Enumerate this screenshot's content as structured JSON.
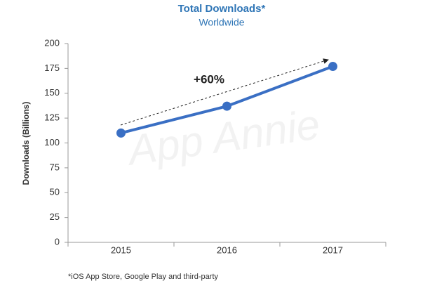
{
  "chart_data": {
    "type": "line",
    "title": "Total Downloads*",
    "subtitle": "Worldwide",
    "y_label": "Downloads (Billions)",
    "annotation": "+60%",
    "watermark": "App Annie",
    "footnote": "*iOS App Store, Google Play and third-party",
    "categories": [
      "2015",
      "2016",
      "2017"
    ],
    "series": [
      {
        "name": "Downloads",
        "color": "#3a6fc4",
        "values": [
          110,
          137,
          177
        ]
      }
    ],
    "ylim": [
      0,
      200
    ],
    "yticks": [
      0,
      25,
      50,
      75,
      100,
      125,
      150,
      175,
      200
    ],
    "grid": false
  }
}
